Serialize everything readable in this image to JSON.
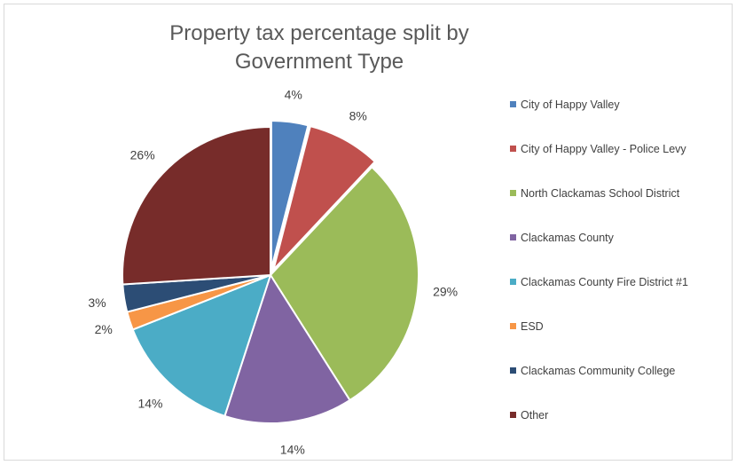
{
  "chart_data": {
    "type": "pie",
    "title_lines": [
      "Property tax percentage split by",
      "Government Type"
    ],
    "exploded_slices": [
      "City of Happy Valley",
      "City of Happy Valley - Police Levy"
    ],
    "slices": [
      {
        "label": "City of Happy Valley",
        "value": 4,
        "display": "4%",
        "color": "#4f81bd"
      },
      {
        "label": "City of Happy Valley - Police Levy",
        "value": 8,
        "display": "8%",
        "color": "#c0504d"
      },
      {
        "label": "North Clackamas School District",
        "value": 29,
        "display": "29%",
        "color": "#9bbb59"
      },
      {
        "label": "Clackamas County",
        "value": 14,
        "display": "14%",
        "color": "#8064a2"
      },
      {
        "label": "Clackamas County Fire District #1",
        "value": 14,
        "display": "14%",
        "color": "#4bacc6"
      },
      {
        "label": "ESD",
        "value": 2,
        "display": "2%",
        "color": "#f79646"
      },
      {
        "label": "Clackamas Community College",
        "value": 3,
        "display": "3%",
        "color": "#2c4d75"
      },
      {
        "label": "Other",
        "value": 26,
        "display": "26%",
        "color": "#772c2a"
      }
    ],
    "legend_position": "right"
  }
}
